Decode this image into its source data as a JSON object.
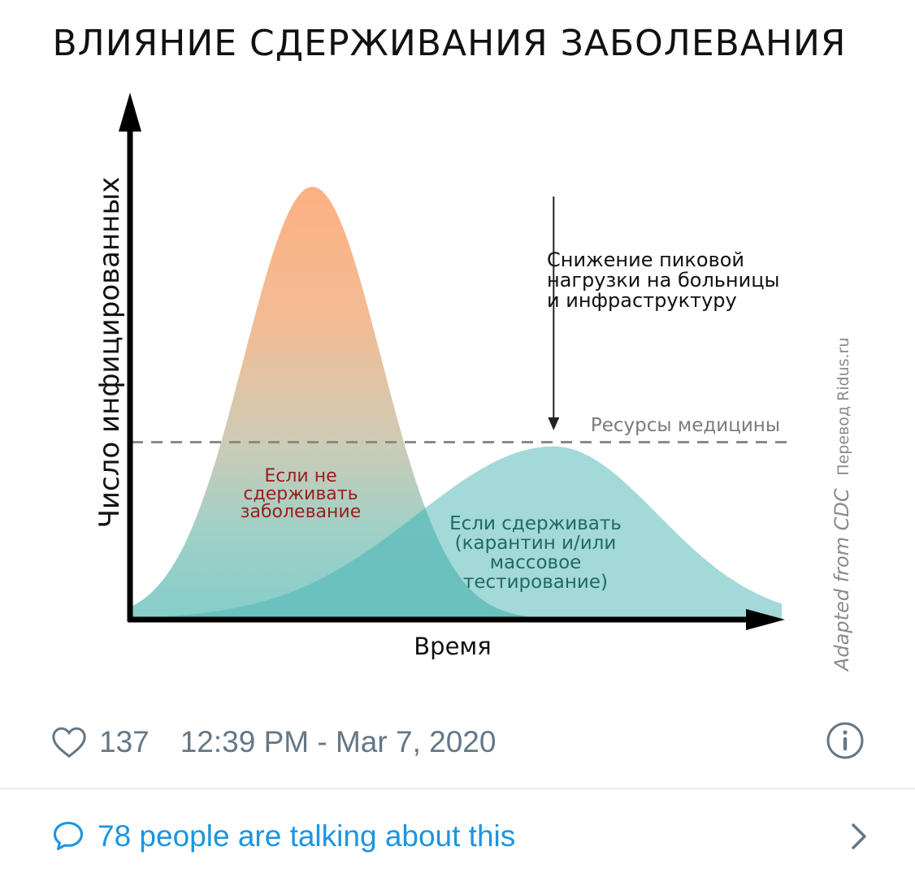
{
  "chart_data": {
    "type": "area",
    "title": "ВЛИЯНИЕ СДЕРЖИВАНИЯ ЗАБОЛЕВАНИЯ",
    "xlabel": "Время",
    "ylabel": "Число инфицированных",
    "xlim": [
      0,
      100
    ],
    "ylim": [
      0,
      100
    ],
    "series": [
      {
        "name": "Если не сдерживать заболевание",
        "color": "#f7b48a",
        "peak_x": 28,
        "peak_y": 100
      },
      {
        "name": "Если сдерживать (карантин и/или массовое тестирование)",
        "color": "#8fd1cf",
        "peak_x": 65,
        "peak_y": 40
      }
    ],
    "reference_line": {
      "label": "Ресурсы медицины",
      "y": 41
    },
    "annotation": {
      "lines": [
        "Снижение пиковой",
        "нагрузки на больницы",
        "и инфраструктуру"
      ],
      "arrow_target_x": 65
    },
    "series_labels": {
      "unmitigated": [
        "Если не",
        "сдерживать",
        "заболевание"
      ],
      "mitigated": [
        "Если сдерживать",
        "(карантин и/или",
        "массовое",
        "тестирование)"
      ]
    },
    "source": "Adapted from CDC",
    "translation": "Перевод Ridus.ru"
  },
  "tweet": {
    "likes": "137",
    "timestamp": "12:39 PM - Mar 7, 2020",
    "talking": "78 people are talking about this",
    "accent_color": "#1b95e0",
    "meta_color": "#657786"
  },
  "icons": {
    "like": "heart-icon",
    "info": "info-icon",
    "reply": "speech-bubble-icon",
    "more": "chevron-right-icon"
  }
}
